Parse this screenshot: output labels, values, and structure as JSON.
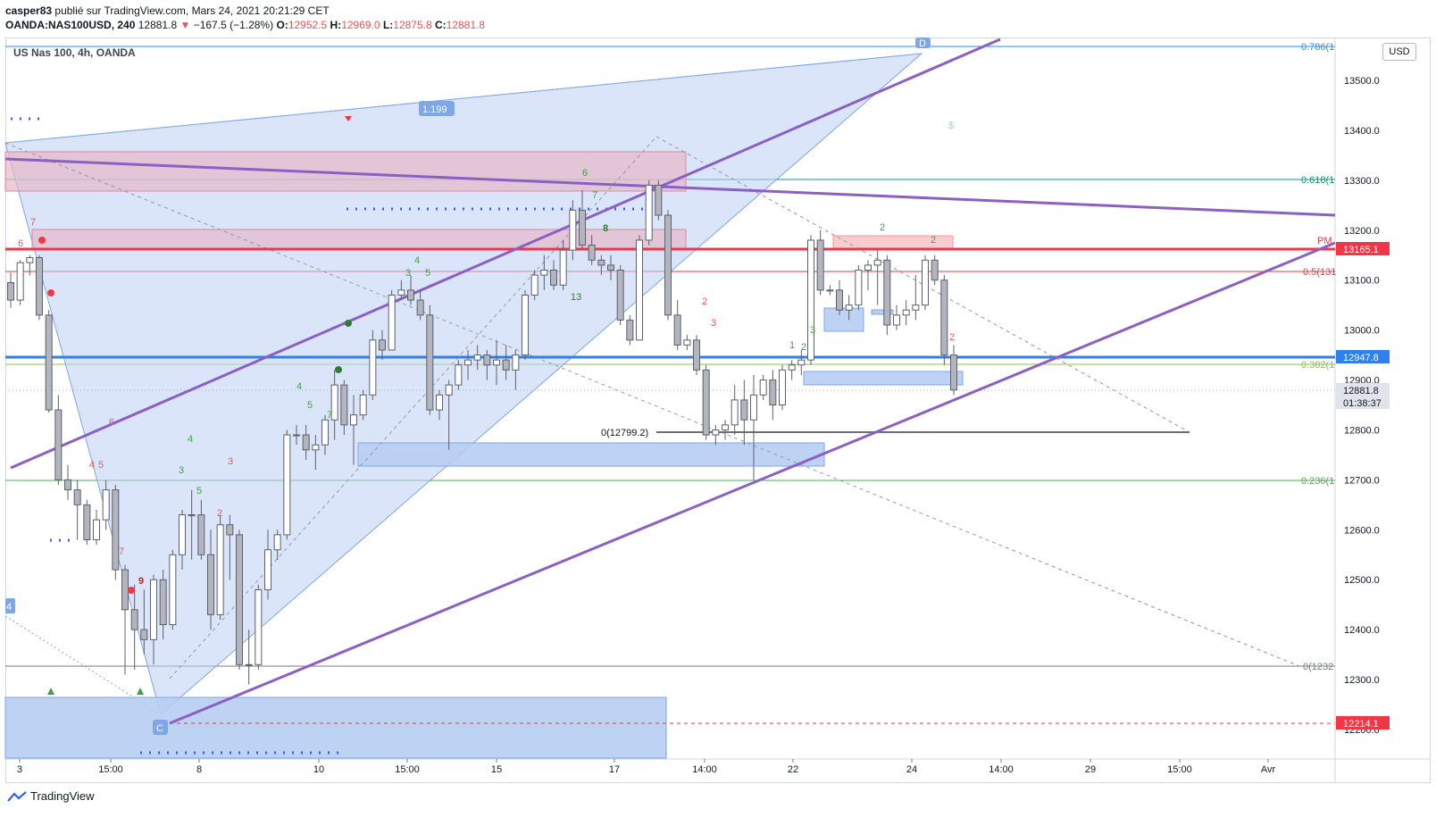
{
  "header": {
    "publisher": "casper83",
    "published_text": "publié sur TradingView.com, Mars 24, 2021 20:21:29 CET",
    "symbol_line": "OANDA:NAS100USD, 240",
    "last": "12881.8",
    "change": "−167.5 (−1.28%)",
    "open_label": "O:",
    "open": "12952.5",
    "high_label": "H:",
    "high": "12969.0",
    "low_label": "L:",
    "low": "12875.8",
    "close_label": "C:",
    "close": "12881.8"
  },
  "chart_title": "US Nas 100, 4h, OANDA",
  "currency": "USD",
  "footer": {
    "brand": "TradingView"
  },
  "colors": {
    "up": "#ffffff",
    "down": "#b2b5be",
    "pink_zone": "#e6b8c8",
    "blue_zone": "#b7cdf2",
    "purple": "#8b5fc4",
    "red_line": "#f23645",
    "blue_line": "#2f80ed"
  },
  "chart_data": {
    "type": "candlestick",
    "y_range": [
      12180,
      13580
    ],
    "y_ticks": [
      "13500.0",
      "13400.0",
      "13300.0",
      "13200.0",
      "13100.0",
      "13000.0",
      "12900.0",
      "12800.0",
      "12700.0",
      "12600.0",
      "12500.0",
      "12400.0",
      "12300.0",
      "12200.0"
    ],
    "x_ticks": [
      "3",
      "15:00",
      "8",
      "10",
      "15:00",
      "15",
      "17",
      "14:00",
      "22",
      "24",
      "14:00",
      "29",
      "15:00",
      "Avr"
    ],
    "price_tags": [
      {
        "text": "13165.1",
        "color": "#f23645"
      },
      {
        "text": "12947.8",
        "color": "#2f80ed"
      },
      {
        "text": "12881.8",
        "color": "#e0e3eb"
      },
      {
        "text": "01:38:37",
        "color": "#e0e3eb"
      },
      {
        "text": "12214.1",
        "color": "#f23645"
      }
    ],
    "fib_labels": [
      {
        "text": "0.786(1",
        "color": "#2196f3"
      },
      {
        "text": "0.618(1",
        "color": "#089981"
      },
      {
        "text": "0.5(131",
        "color": "#f23645"
      },
      {
        "text": "0.382(1",
        "color": "#8bc34a"
      },
      {
        "text": "0.236(1",
        "color": "#4caf50"
      },
      {
        "text": "0(1232",
        "color": "#787b86"
      }
    ],
    "annotations": [
      "1.199",
      "0(12799.2)",
      "PM",
      "C",
      "D",
      "4",
      "$"
    ],
    "candles": [
      [
        13095,
        13115,
        13045,
        13060
      ],
      [
        13060,
        13140,
        13050,
        13135
      ],
      [
        13135,
        13150,
        13110,
        13145
      ],
      [
        13145,
        13150,
        13020,
        13030
      ],
      [
        13030,
        13040,
        12835,
        12840
      ],
      [
        12840,
        12870,
        12690,
        12700
      ],
      [
        12700,
        12730,
        12660,
        12680
      ],
      [
        12680,
        12700,
        12580,
        12650
      ],
      [
        12650,
        12660,
        12570,
        12580
      ],
      [
        12580,
        12640,
        12570,
        12620
      ],
      [
        12620,
        12700,
        12600,
        12680
      ],
      [
        12680,
        12690,
        12500,
        12520
      ],
      [
        12520,
        12530,
        12310,
        12440
      ],
      [
        12440,
        12490,
        12320,
        12400
      ],
      [
        12400,
        12480,
        12350,
        12380
      ],
      [
        12380,
        12510,
        12330,
        12500
      ],
      [
        12500,
        12520,
        12380,
        12410
      ],
      [
        12410,
        12560,
        12400,
        12550
      ],
      [
        12550,
        12640,
        12520,
        12630
      ],
      [
        12630,
        12680,
        12540,
        12630
      ],
      [
        12630,
        12660,
        12540,
        12550
      ],
      [
        12550,
        12600,
        12400,
        12430
      ],
      [
        12430,
        12630,
        12420,
        12610
      ],
      [
        12610,
        12630,
        12500,
        12590
      ],
      [
        12590,
        12600,
        12320,
        12330
      ],
      [
        12330,
        12400,
        12290,
        12330
      ],
      [
        12330,
        12490,
        12320,
        12480
      ],
      [
        12480,
        12600,
        12460,
        12560
      ],
      [
        12560,
        12600,
        12540,
        12590
      ],
      [
        12590,
        12800,
        12580,
        12790
      ],
      [
        12790,
        12810,
        12770,
        12790
      ],
      [
        12790,
        12810,
        12740,
        12760
      ],
      [
        12760,
        12790,
        12720,
        12770
      ],
      [
        12770,
        12830,
        12750,
        12820
      ],
      [
        12820,
        12920,
        12780,
        12890
      ],
      [
        12890,
        12900,
        12790,
        12810
      ],
      [
        12810,
        12870,
        12730,
        12830
      ],
      [
        12830,
        12880,
        12820,
        12870
      ],
      [
        12870,
        13000,
        12860,
        12980
      ],
      [
        12980,
        13000,
        12940,
        12960
      ],
      [
        12960,
        13080,
        12960,
        13070
      ],
      [
        13070,
        13100,
        13060,
        13080
      ],
      [
        13080,
        13110,
        13050,
        13060
      ],
      [
        13060,
        13080,
        13020,
        13030
      ],
      [
        13030,
        13050,
        12830,
        12840
      ],
      [
        12840,
        12880,
        12820,
        12870
      ],
      [
        12870,
        12900,
        12760,
        12890
      ],
      [
        12890,
        12940,
        12880,
        12930
      ],
      [
        12930,
        12960,
        12900,
        12940
      ],
      [
        12940,
        12970,
        12920,
        12950
      ],
      [
        12950,
        12960,
        12900,
        12930
      ],
      [
        12930,
        12980,
        12890,
        12940
      ],
      [
        12940,
        12970,
        12900,
        12920
      ],
      [
        12920,
        12960,
        12880,
        12950
      ],
      [
        12950,
        13080,
        12940,
        13070
      ],
      [
        13070,
        13120,
        13060,
        13110
      ],
      [
        13110,
        13150,
        13080,
        13120
      ],
      [
        13120,
        13140,
        13080,
        13090
      ],
      [
        13090,
        13180,
        13080,
        13160
      ],
      [
        13160,
        13260,
        13140,
        13240
      ],
      [
        13240,
        13280,
        13160,
        13170
      ],
      [
        13170,
        13190,
        13130,
        13140
      ],
      [
        13140,
        13150,
        13110,
        13130
      ],
      [
        13130,
        13150,
        13100,
        13120
      ],
      [
        13120,
        13130,
        13010,
        13020
      ],
      [
        13020,
        13030,
        12970,
        12980
      ],
      [
        12980,
        13190,
        12980,
        13180
      ],
      [
        13180,
        13300,
        13170,
        13290
      ],
      [
        13290,
        13300,
        13220,
        13230
      ],
      [
        13230,
        13240,
        13020,
        13030
      ],
      [
        13030,
        13060,
        12960,
        12970
      ],
      [
        12970,
        12990,
        12960,
        12980
      ],
      [
        12980,
        12990,
        12910,
        12920
      ],
      [
        12920,
        12930,
        12780,
        12790
      ],
      [
        12790,
        12810,
        12770,
        12800
      ],
      [
        12800,
        12820,
        12780,
        12810
      ],
      [
        12810,
        12890,
        12790,
        12860
      ],
      [
        12860,
        12900,
        12770,
        12820
      ],
      [
        12820,
        12910,
        12700,
        12870
      ],
      [
        12870,
        12910,
        12860,
        12900
      ],
      [
        12900,
        12920,
        12820,
        12850
      ],
      [
        12850,
        12930,
        12840,
        12920
      ],
      [
        12920,
        12940,
        12900,
        12930
      ],
      [
        12930,
        12960,
        12910,
        12940
      ],
      [
        12940,
        13190,
        12930,
        13180
      ],
      [
        13180,
        13200,
        13070,
        13080
      ],
      [
        13080,
        13090,
        13070,
        13080
      ],
      [
        13080,
        13100,
        13030,
        13040
      ],
      [
        13040,
        13070,
        13020,
        13050
      ],
      [
        13050,
        13130,
        13040,
        13120
      ],
      [
        13120,
        13140,
        13080,
        13130
      ],
      [
        13130,
        13160,
        13050,
        13140
      ],
      [
        13140,
        13150,
        12990,
        13010
      ],
      [
        13010,
        13050,
        13000,
        13030
      ],
      [
        13030,
        13060,
        13010,
        13040
      ],
      [
        13040,
        13110,
        13020,
        13050
      ],
      [
        13050,
        13150,
        13040,
        13140
      ],
      [
        13140,
        13150,
        13090,
        13100
      ],
      [
        13100,
        13110,
        12930,
        12950
      ],
      [
        12950,
        12970,
        12870,
        12880
      ]
    ]
  }
}
